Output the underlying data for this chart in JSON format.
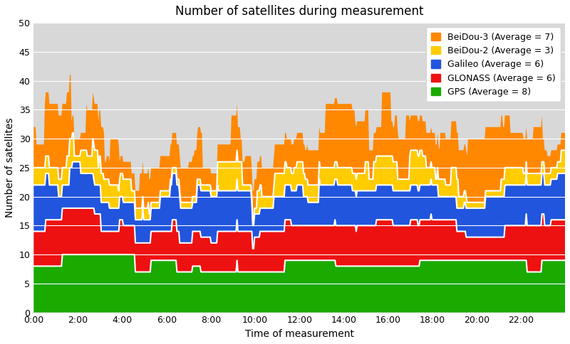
{
  "title": "Number of satellites during measurement",
  "xlabel": "Time of measurement",
  "ylabel": "Number of satellites",
  "xlim": [
    0,
    24
  ],
  "ylim": [
    0,
    50
  ],
  "yticks": [
    0,
    5,
    10,
    15,
    20,
    25,
    30,
    35,
    40,
    45,
    50
  ],
  "xtick_labels": [
    "0:00",
    "2:00",
    "4:00",
    "6:00",
    "8:00",
    "10:00",
    "12:00",
    "14:00",
    "16:00",
    "18:00",
    "20:00",
    "22:00"
  ],
  "xtick_positions": [
    0,
    2,
    4,
    6,
    8,
    10,
    12,
    14,
    16,
    18,
    20,
    22
  ],
  "colors": {
    "GPS": "#1aaa00",
    "GLONASS": "#ee1111",
    "Galileo": "#2255dd",
    "BeiDou-2": "#ffcc00",
    "BeiDou-3": "#ff8800"
  },
  "legend_labels": [
    "BeiDou-3 (Average = 7)",
    "BeiDou-2 (Average = 3)",
    "Galileo (Average = 6)",
    "GLONASS (Average = 6)",
    "GPS (Average = 8)"
  ],
  "plot_bg_color": "#d8d8d8",
  "line_color": "white",
  "line_width": 1.5,
  "title_fontsize": 12,
  "label_fontsize": 10,
  "tick_fontsize": 9,
  "legend_fontsize": 9
}
